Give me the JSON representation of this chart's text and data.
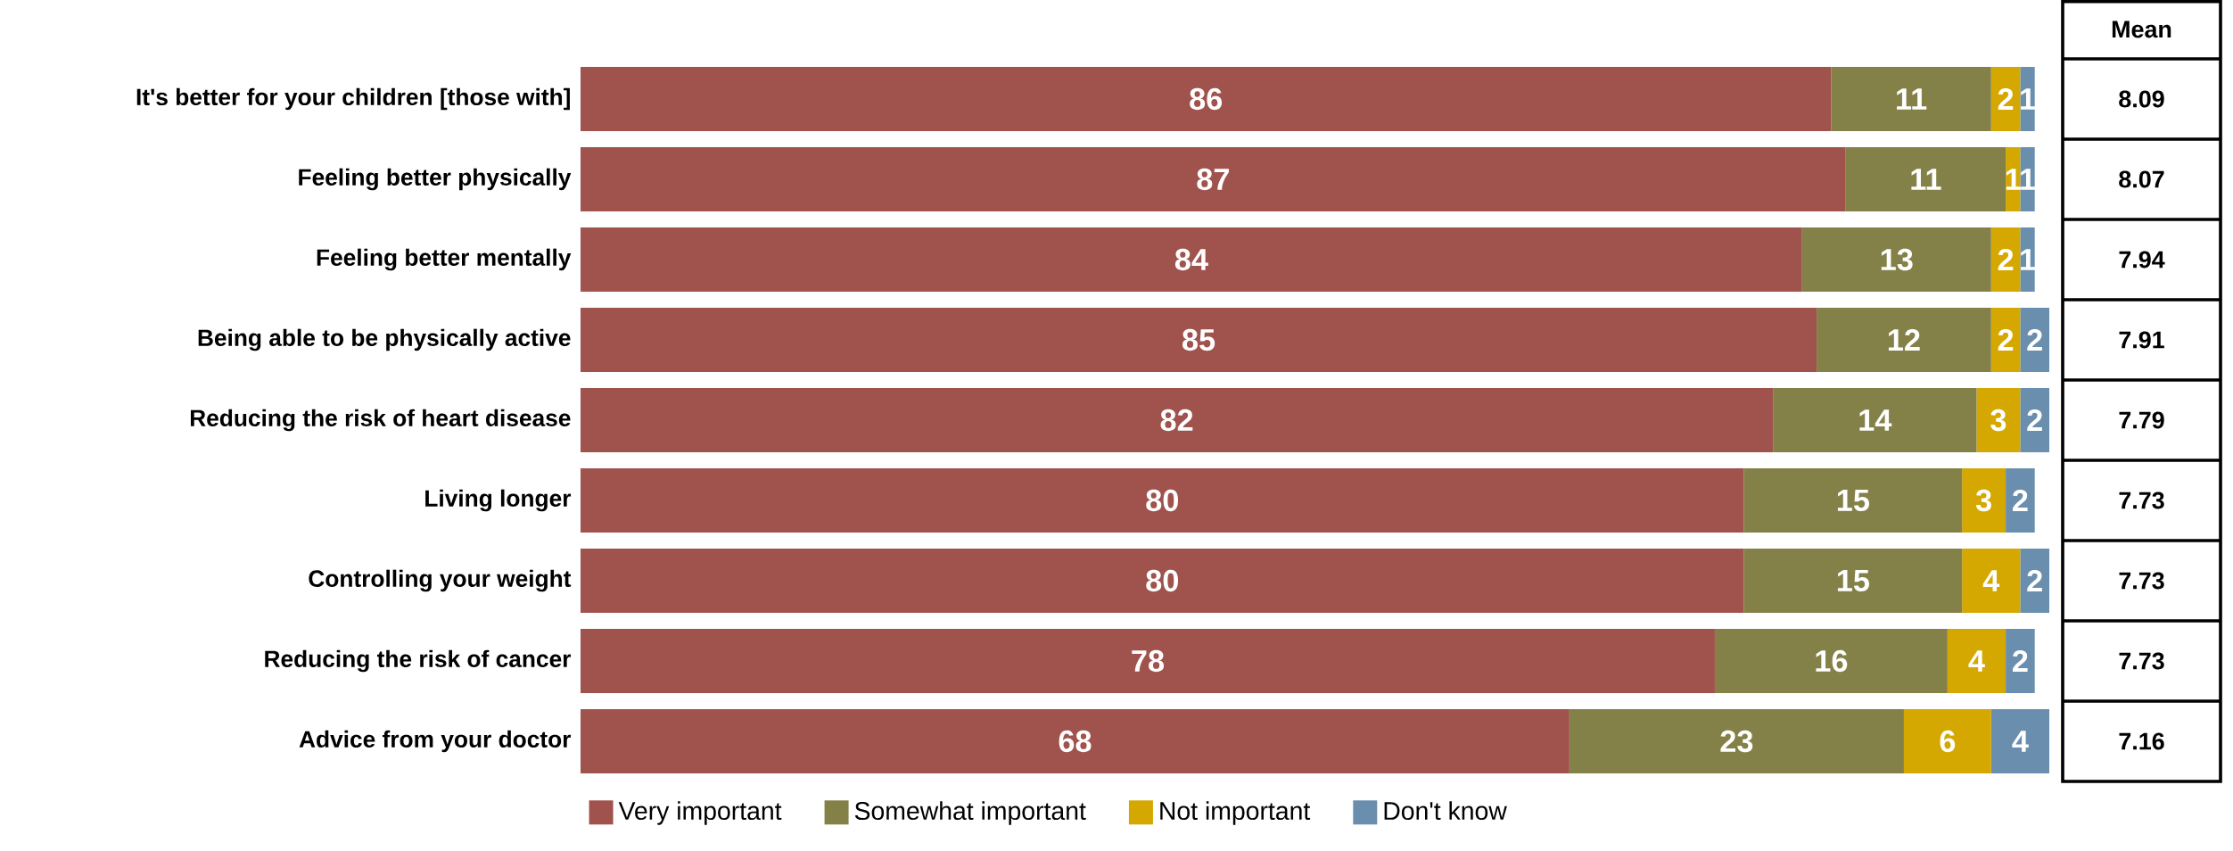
{
  "chart_data": {
    "type": "bar",
    "orientation": "horizontal",
    "stacked": true,
    "data_labels": true,
    "legend": "bottom",
    "categories": [
      "It's better for your children [those with]",
      "Feeling better physically",
      "Feeling better mentally",
      "Being able to be physically active",
      "Reducing the risk of heart disease",
      "Living longer",
      "Controlling your weight",
      "Reducing the risk of cancer",
      "Advice from your doctor"
    ],
    "series": [
      {
        "name": "Very important",
        "color": "#a0524c",
        "values": [
          86,
          87,
          84,
          85,
          82,
          80,
          80,
          78,
          68
        ]
      },
      {
        "name": "Somewhat important",
        "color": "#848148",
        "values": [
          11,
          11,
          13,
          12,
          14,
          15,
          15,
          16,
          23
        ]
      },
      {
        "name": "Not important",
        "color": "#d4a800",
        "values": [
          2,
          1,
          2,
          2,
          3,
          3,
          4,
          4,
          6
        ]
      },
      {
        "name": "Don't know",
        "color": "#6a8fae",
        "values": [
          1,
          1,
          1,
          2,
          2,
          2,
          2,
          2,
          4
        ]
      }
    ],
    "annotations": [
      "Mean",
      "8.09",
      "8.07",
      "7.94",
      "7.91",
      "7.79",
      "7.73",
      "7.73",
      "7.73",
      "7.16"
    ]
  }
}
